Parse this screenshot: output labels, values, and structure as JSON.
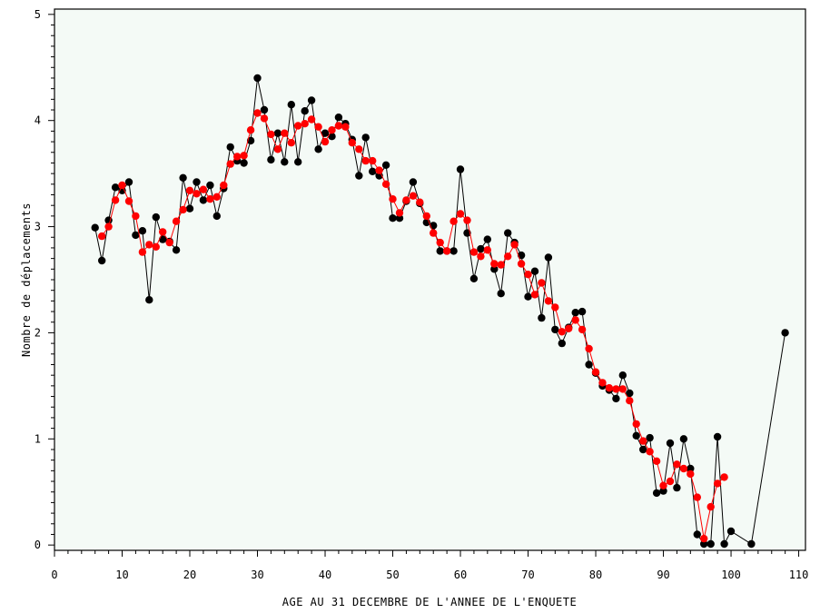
{
  "chart_data": {
    "type": "line",
    "title": "",
    "xlabel": "AGE AU 31 DECEMBRE DE L'ANNEE DE L'ENQUETE",
    "ylabel": "Nombre de déplacements",
    "xlim": [
      0,
      111
    ],
    "ylim": [
      -0.05,
      5.05
    ],
    "xticks": [
      0,
      10,
      20,
      30,
      40,
      50,
      60,
      70,
      80,
      90,
      100,
      110
    ],
    "yticks": [
      0,
      1,
      2,
      3,
      4,
      5
    ],
    "plot_background": "#f4faf6",
    "series": [
      {
        "color": "#000000",
        "points": [
          [
            6,
            2.99
          ],
          [
            7,
            2.68
          ],
          [
            8,
            3.06
          ],
          [
            9,
            3.37
          ],
          [
            10,
            3.34
          ],
          [
            11,
            3.42
          ],
          [
            12,
            2.92
          ],
          [
            13,
            2.96
          ],
          [
            14,
            2.31
          ],
          [
            15,
            3.09
          ],
          [
            16,
            2.88
          ],
          [
            17,
            2.86
          ],
          [
            18,
            2.78
          ],
          [
            19,
            3.46
          ],
          [
            20,
            3.17
          ],
          [
            21,
            3.42
          ],
          [
            22,
            3.25
          ],
          [
            23,
            3.39
          ],
          [
            24,
            3.1
          ],
          [
            25,
            3.36
          ],
          [
            26,
            3.75
          ],
          [
            27,
            3.62
          ],
          [
            28,
            3.6
          ],
          [
            29,
            3.81
          ],
          [
            30,
            4.4
          ],
          [
            31,
            4.1
          ],
          [
            32,
            3.63
          ],
          [
            33,
            3.88
          ],
          [
            34,
            3.61
          ],
          [
            35,
            4.15
          ],
          [
            36,
            3.61
          ],
          [
            37,
            4.09
          ],
          [
            38,
            4.19
          ],
          [
            39,
            3.73
          ],
          [
            40,
            3.88
          ],
          [
            41,
            3.85
          ],
          [
            42,
            4.03
          ],
          [
            43,
            3.97
          ],
          [
            44,
            3.82
          ],
          [
            45,
            3.48
          ],
          [
            46,
            3.84
          ],
          [
            47,
            3.52
          ],
          [
            48,
            3.48
          ],
          [
            49,
            3.58
          ],
          [
            50,
            3.08
          ],
          [
            51,
            3.08
          ],
          [
            52,
            3.24
          ],
          [
            53,
            3.42
          ],
          [
            54,
            3.22
          ],
          [
            55,
            3.04
          ],
          [
            56,
            3.01
          ],
          [
            57,
            2.77
          ],
          [
            58,
            2.77
          ],
          [
            59,
            2.77
          ],
          [
            60,
            3.54
          ],
          [
            61,
            2.94
          ],
          [
            62,
            2.51
          ],
          [
            63,
            2.79
          ],
          [
            64,
            2.88
          ],
          [
            65,
            2.6
          ],
          [
            66,
            2.37
          ],
          [
            67,
            2.94
          ],
          [
            68,
            2.85
          ],
          [
            69,
            2.73
          ],
          [
            70,
            2.34
          ],
          [
            71,
            2.58
          ],
          [
            72,
            2.14
          ],
          [
            73,
            2.71
          ],
          [
            74,
            2.03
          ],
          [
            75,
            1.9
          ],
          [
            76,
            2.05
          ],
          [
            77,
            2.19
          ],
          [
            78,
            2.2
          ],
          [
            79,
            1.7
          ],
          [
            80,
            1.62
          ],
          [
            81,
            1.5
          ],
          [
            82,
            1.46
          ],
          [
            83,
            1.38
          ],
          [
            84,
            1.6
          ],
          [
            85,
            1.43
          ],
          [
            86,
            1.03
          ],
          [
            87,
            0.9
          ],
          [
            88,
            1.01
          ],
          [
            89,
            0.49
          ],
          [
            90,
            0.51
          ],
          [
            91,
            0.96
          ],
          [
            92,
            0.54
          ],
          [
            93,
            1.0
          ],
          [
            94,
            0.72
          ],
          [
            95,
            0.1
          ],
          [
            96,
            0.01
          ],
          [
            97,
            0.01
          ],
          [
            98,
            1.02
          ],
          [
            99,
            0.01
          ],
          [
            100,
            0.13
          ],
          [
            103,
            0.01
          ],
          [
            108,
            2.0
          ]
        ]
      },
      {
        "color": "#ff0000",
        "points": [
          [
            7,
            2.91
          ],
          [
            8,
            3.0
          ],
          [
            9,
            3.25
          ],
          [
            10,
            3.39
          ],
          [
            11,
            3.24
          ],
          [
            12,
            3.1
          ],
          [
            13,
            2.76
          ],
          [
            14,
            2.83
          ],
          [
            15,
            2.81
          ],
          [
            16,
            2.95
          ],
          [
            17,
            2.85
          ],
          [
            18,
            3.05
          ],
          [
            19,
            3.16
          ],
          [
            20,
            3.34
          ],
          [
            21,
            3.31
          ],
          [
            22,
            3.35
          ],
          [
            23,
            3.26
          ],
          [
            24,
            3.28
          ],
          [
            25,
            3.39
          ],
          [
            26,
            3.59
          ],
          [
            27,
            3.66
          ],
          [
            28,
            3.67
          ],
          [
            29,
            3.91
          ],
          [
            30,
            4.07
          ],
          [
            31,
            4.02
          ],
          [
            32,
            3.87
          ],
          [
            33,
            3.73
          ],
          [
            34,
            3.88
          ],
          [
            35,
            3.79
          ],
          [
            36,
            3.95
          ],
          [
            37,
            3.97
          ],
          [
            38,
            4.01
          ],
          [
            39,
            3.94
          ],
          [
            40,
            3.8
          ],
          [
            41,
            3.91
          ],
          [
            42,
            3.95
          ],
          [
            43,
            3.94
          ],
          [
            44,
            3.79
          ],
          [
            45,
            3.73
          ],
          [
            46,
            3.62
          ],
          [
            47,
            3.62
          ],
          [
            48,
            3.53
          ],
          [
            49,
            3.4
          ],
          [
            50,
            3.26
          ],
          [
            51,
            3.13
          ],
          [
            52,
            3.25
          ],
          [
            53,
            3.29
          ],
          [
            54,
            3.23
          ],
          [
            55,
            3.1
          ],
          [
            56,
            2.94
          ],
          [
            57,
            2.85
          ],
          [
            58,
            2.77
          ],
          [
            59,
            3.05
          ],
          [
            60,
            3.12
          ],
          [
            61,
            3.06
          ],
          [
            62,
            2.76
          ],
          [
            63,
            2.72
          ],
          [
            64,
            2.78
          ],
          [
            65,
            2.65
          ],
          [
            66,
            2.64
          ],
          [
            67,
            2.72
          ],
          [
            68,
            2.83
          ],
          [
            69,
            2.65
          ],
          [
            70,
            2.55
          ],
          [
            71,
            2.36
          ],
          [
            72,
            2.47
          ],
          [
            73,
            2.3
          ],
          [
            74,
            2.24
          ],
          [
            75,
            2.01
          ],
          [
            76,
            2.04
          ],
          [
            77,
            2.12
          ],
          [
            78,
            2.03
          ],
          [
            79,
            1.85
          ],
          [
            80,
            1.63
          ],
          [
            81,
            1.53
          ],
          [
            82,
            1.48
          ],
          [
            83,
            1.47
          ],
          [
            84,
            1.47
          ],
          [
            85,
            1.36
          ],
          [
            86,
            1.14
          ],
          [
            87,
            0.98
          ],
          [
            88,
            0.88
          ],
          [
            89,
            0.79
          ],
          [
            90,
            0.56
          ],
          [
            91,
            0.6
          ],
          [
            92,
            0.76
          ],
          [
            93,
            0.72
          ],
          [
            94,
            0.67
          ],
          [
            95,
            0.45
          ],
          [
            96,
            0.06
          ],
          [
            97,
            0.36
          ],
          [
            98,
            0.58
          ],
          [
            99,
            0.64
          ]
        ]
      }
    ]
  }
}
